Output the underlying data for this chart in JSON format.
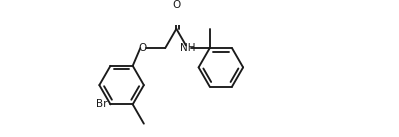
{
  "bg": "#ffffff",
  "lc": "#1a1a1a",
  "lw": 1.35,
  "fs": 7.5,
  "figsize": [
    3.99,
    1.37
  ],
  "dpi": 100,
  "xlim": [
    -0.5,
    10.5
  ],
  "ylim": [
    -1.8,
    3.2
  ]
}
